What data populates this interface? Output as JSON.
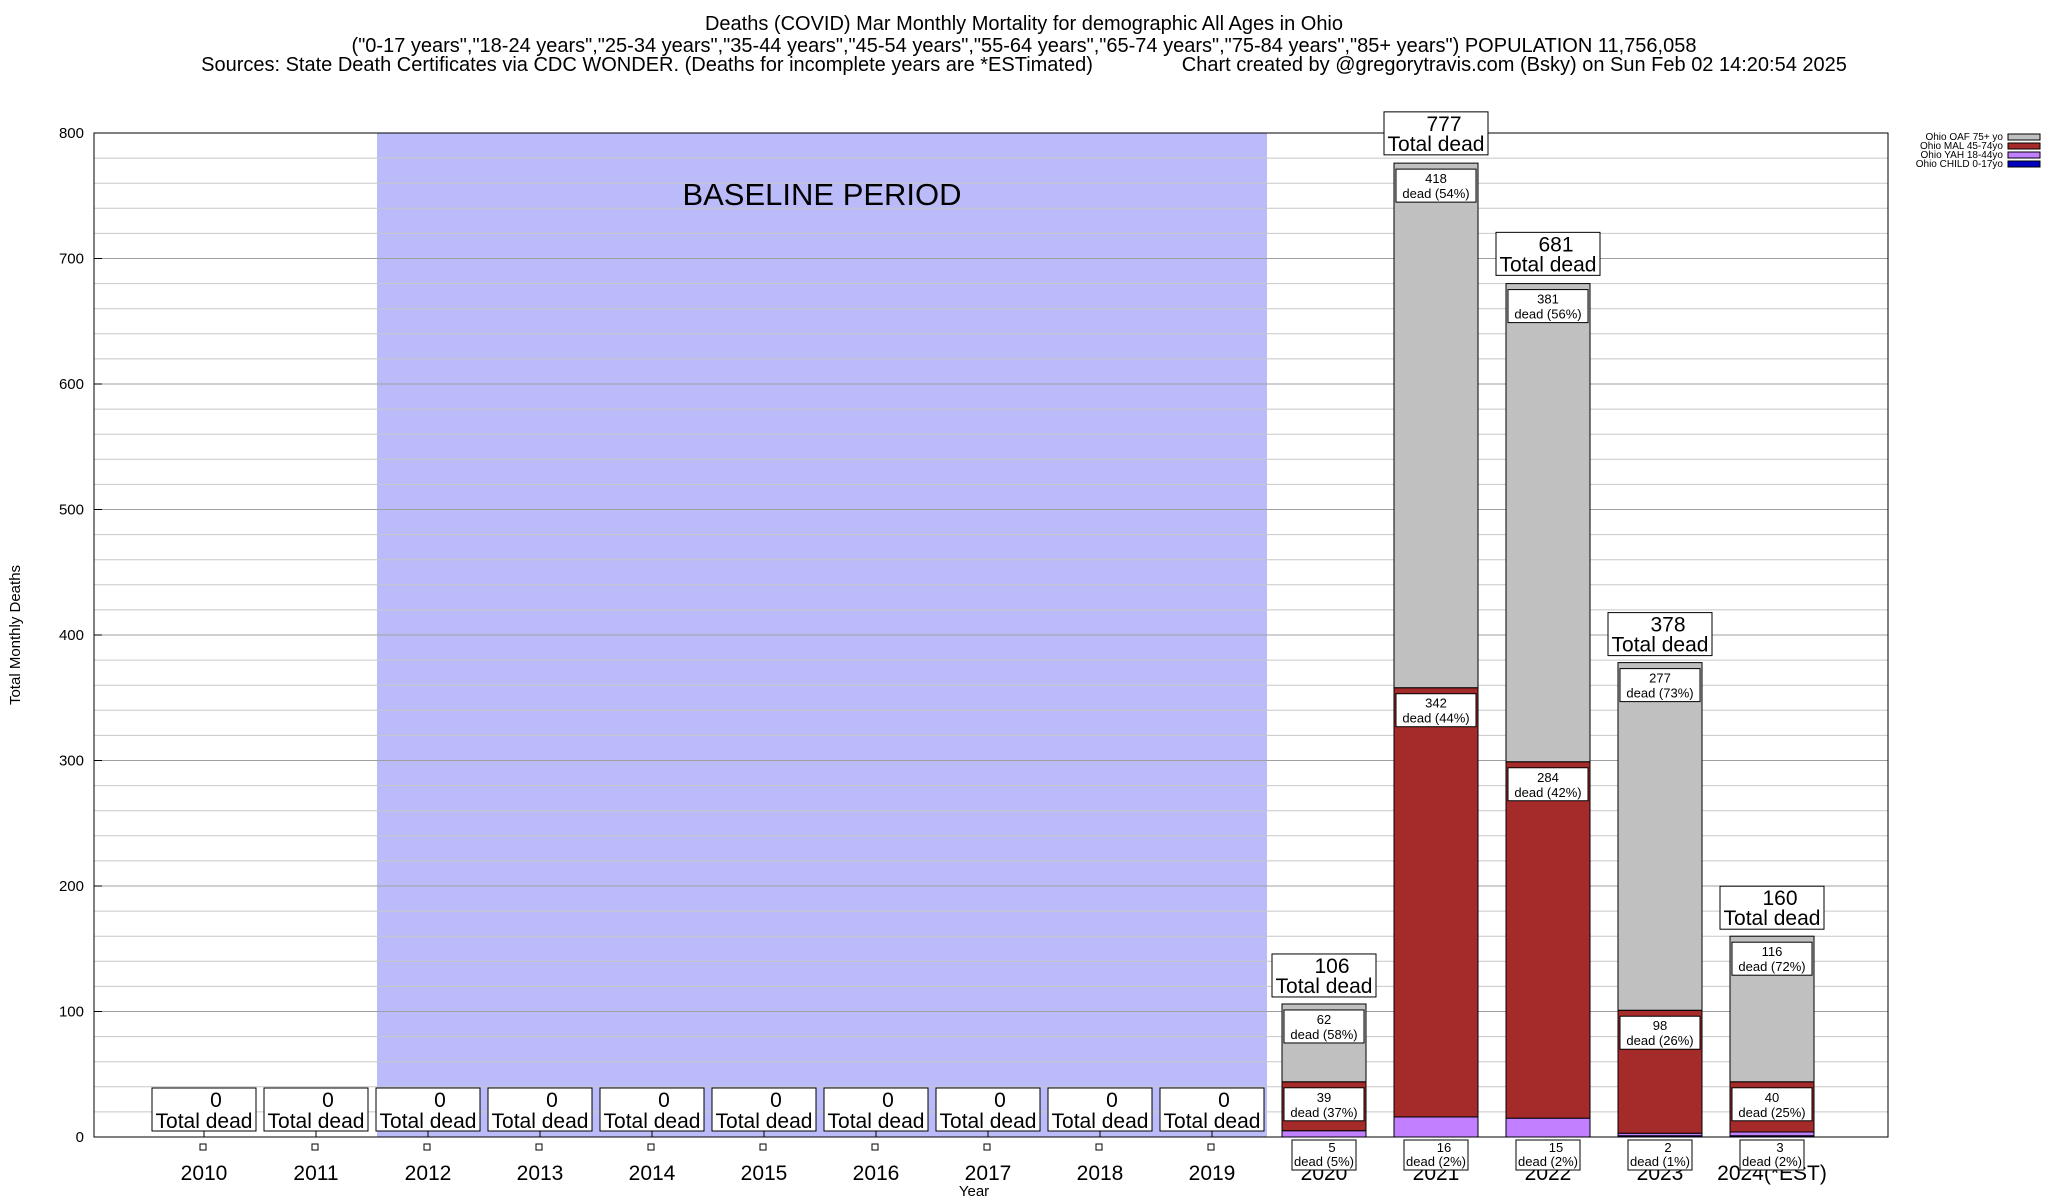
{
  "titles": {
    "line1": "Deaths (COVID) Mar Monthly Mortality for demographic All Ages in Ohio",
    "line2": "(\"0-17 years\",\"18-24 years\",\"25-34 years\",\"35-44 years\",\"45-54 years\",\"55-64 years\",\"65-74 years\",\"75-84 years\",\"85+ years\") POPULATION 11,756,058",
    "line3": "Sources: State Death Certificates via CDC WONDER. (Deaths for incomplete years are *ESTimated)                Chart created by @gregorytravis.com (Bsky) on Sun Feb 02 14:20:54 2025"
  },
  "colors": {
    "oaf": "#c0c0c0",
    "mal": "#a52a2a",
    "yah": "#c080ff",
    "child": "#0000c0",
    "baseline": "#bbbbfa"
  },
  "chart_data": {
    "type": "bar",
    "stacked": true,
    "title": "Deaths (COVID) Mar Monthly Mortality for demographic All Ages in Ohio",
    "xlabel": "Year",
    "ylabel": "Total Monthly Deaths",
    "ylim": [
      0,
      800
    ],
    "yticks": [
      0,
      100,
      200,
      300,
      400,
      500,
      600,
      700,
      800
    ],
    "grid": true,
    "legend_position": "top-right",
    "categories": [
      "2010",
      "2011",
      "2012",
      "2013",
      "2014",
      "2015",
      "2016",
      "2017",
      "2018",
      "2019",
      "2020",
      "2021",
      "2022",
      "2023",
      "2024(*EST)"
    ],
    "series": [
      {
        "name": "Ohio CHILD 0-17yo",
        "values": [
          0,
          0,
          0,
          0,
          0,
          0,
          0,
          0,
          0,
          0,
          0,
          0,
          0,
          1,
          1
        ]
      },
      {
        "name": "Ohio YAH 18-44yo",
        "values": [
          0,
          0,
          0,
          0,
          0,
          0,
          0,
          0,
          0,
          0,
          5,
          16,
          15,
          2,
          3
        ]
      },
      {
        "name": "Ohio MAL 45-74yo",
        "values": [
          0,
          0,
          0,
          0,
          0,
          0,
          0,
          0,
          0,
          0,
          39,
          342,
          284,
          98,
          40
        ]
      },
      {
        "name": "Ohio OAF 75+ yo",
        "values": [
          0,
          0,
          0,
          0,
          0,
          0,
          0,
          0,
          0,
          0,
          62,
          418,
          381,
          277,
          116
        ]
      }
    ],
    "totals": [
      0,
      0,
      0,
      0,
      0,
      0,
      0,
      0,
      0,
      0,
      106,
      777,
      681,
      378,
      160
    ],
    "total_label": "Total dead",
    "segment_labels": {
      "yah": [
        "",
        "",
        "",
        "",
        "",
        "",
        "",
        "",
        "",
        "",
        "dead (5%)",
        "dead (2%)",
        "dead (2%)",
        "dead (1%)",
        "dead (2%)"
      ],
      "mal": [
        "",
        "",
        "",
        "",
        "",
        "",
        "",
        "",
        "",
        "",
        "dead (37%)",
        "dead (44%)",
        "dead (42%)",
        "dead (26%)",
        "dead (25%)"
      ],
      "oaf": [
        "",
        "",
        "",
        "",
        "",
        "",
        "",
        "",
        "",
        "",
        "dead (58%)",
        "dead (54%)",
        "dead (56%)",
        "dead (73%)",
        "dead (72%)"
      ]
    },
    "baseline_region": {
      "from": "2012",
      "to": "2019",
      "label": "BASELINE PERIOD"
    }
  }
}
